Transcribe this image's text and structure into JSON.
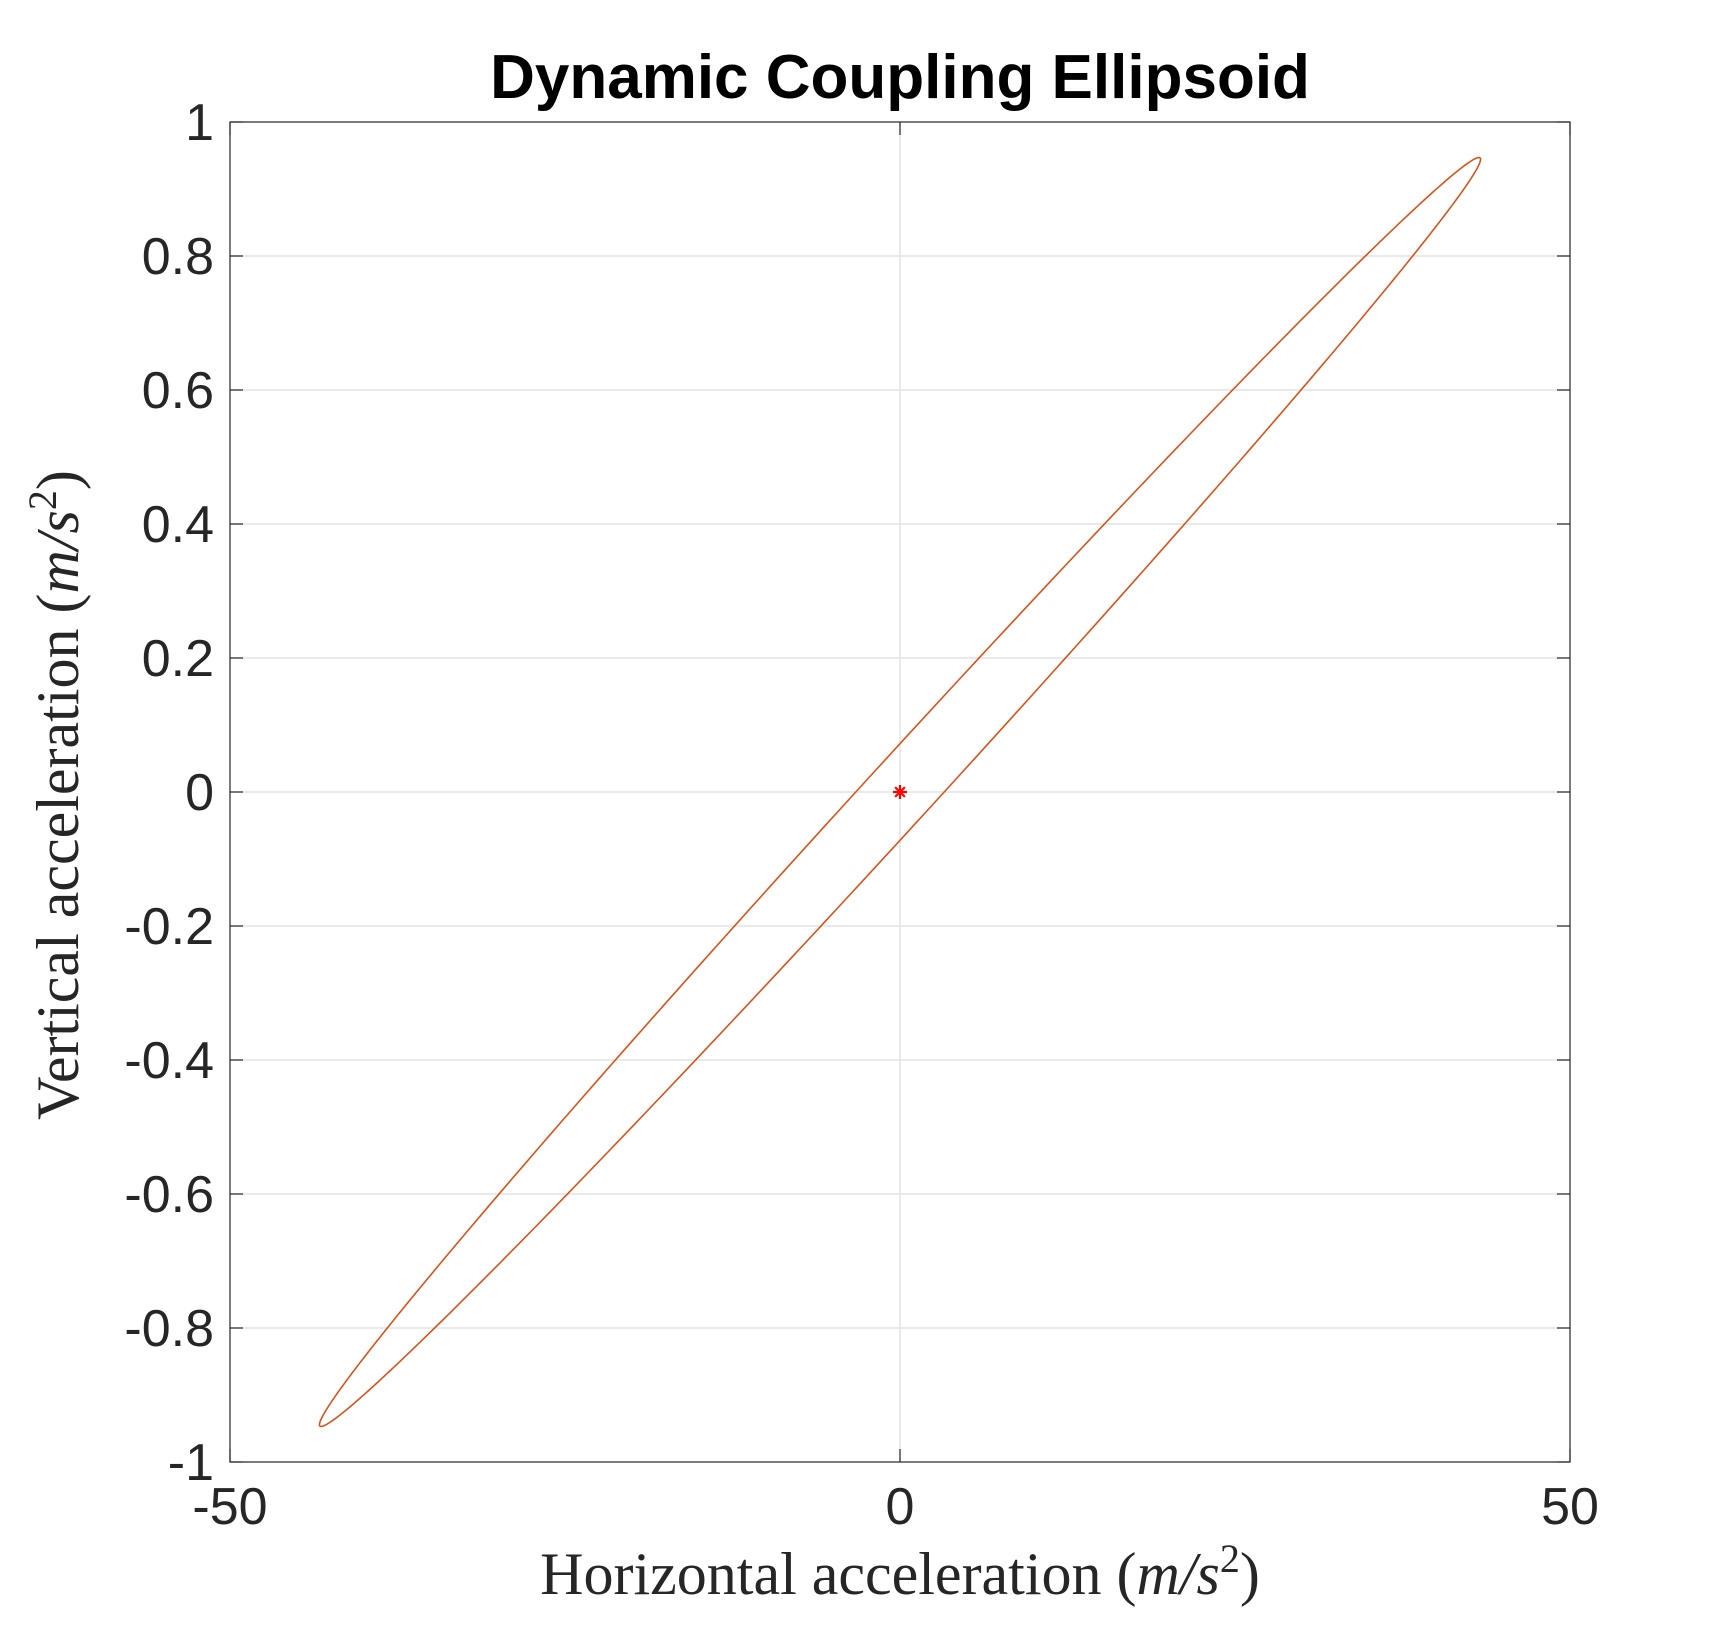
{
  "chart_data": {
    "type": "line",
    "title": "Dynamic Coupling Ellipsoid",
    "xlabel": {
      "prefix": "Horizontal acceleration ",
      "unit_open": "(",
      "unit_var": "m/s",
      "unit_exp": "2",
      "unit_close": ")"
    },
    "ylabel": {
      "prefix": "Vertical acceleration ",
      "unit_open": "(",
      "unit_var": "m/s",
      "unit_exp": "2",
      "unit_close": ")"
    },
    "xlim": [
      -50,
      50
    ],
    "ylim": [
      -1,
      1
    ],
    "xticks": [
      {
        "value": -50,
        "label": "-50"
      },
      {
        "value": 0,
        "label": "0"
      },
      {
        "value": 50,
        "label": "50"
      }
    ],
    "yticks": [
      {
        "value": 1,
        "label": "1"
      },
      {
        "value": 0.8,
        "label": "0.8"
      },
      {
        "value": 0.6,
        "label": "0.6"
      },
      {
        "value": 0.4,
        "label": "0.4"
      },
      {
        "value": 0.2,
        "label": "0.2"
      },
      {
        "value": 0,
        "label": "0"
      },
      {
        "value": -0.2,
        "label": "-0.2"
      },
      {
        "value": -0.4,
        "label": "-0.4"
      },
      {
        "value": -0.6,
        "label": "-0.6"
      },
      {
        "value": -0.8,
        "label": "-0.8"
      },
      {
        "value": -1,
        "label": "-1"
      }
    ],
    "grid": true,
    "series": [
      {
        "kind": "ellipse",
        "color": "#d95319",
        "center": [
          0,
          0
        ],
        "extreme_points": [
          [
            43.2,
            0.947
          ],
          [
            -43.2,
            -0.947
          ]
        ],
        "half_width_at_center_x": 3.3
      },
      {
        "kind": "marker",
        "marker": "asterisk",
        "color": "#ff0000",
        "points": [
          [
            0,
            0
          ]
        ]
      }
    ]
  }
}
